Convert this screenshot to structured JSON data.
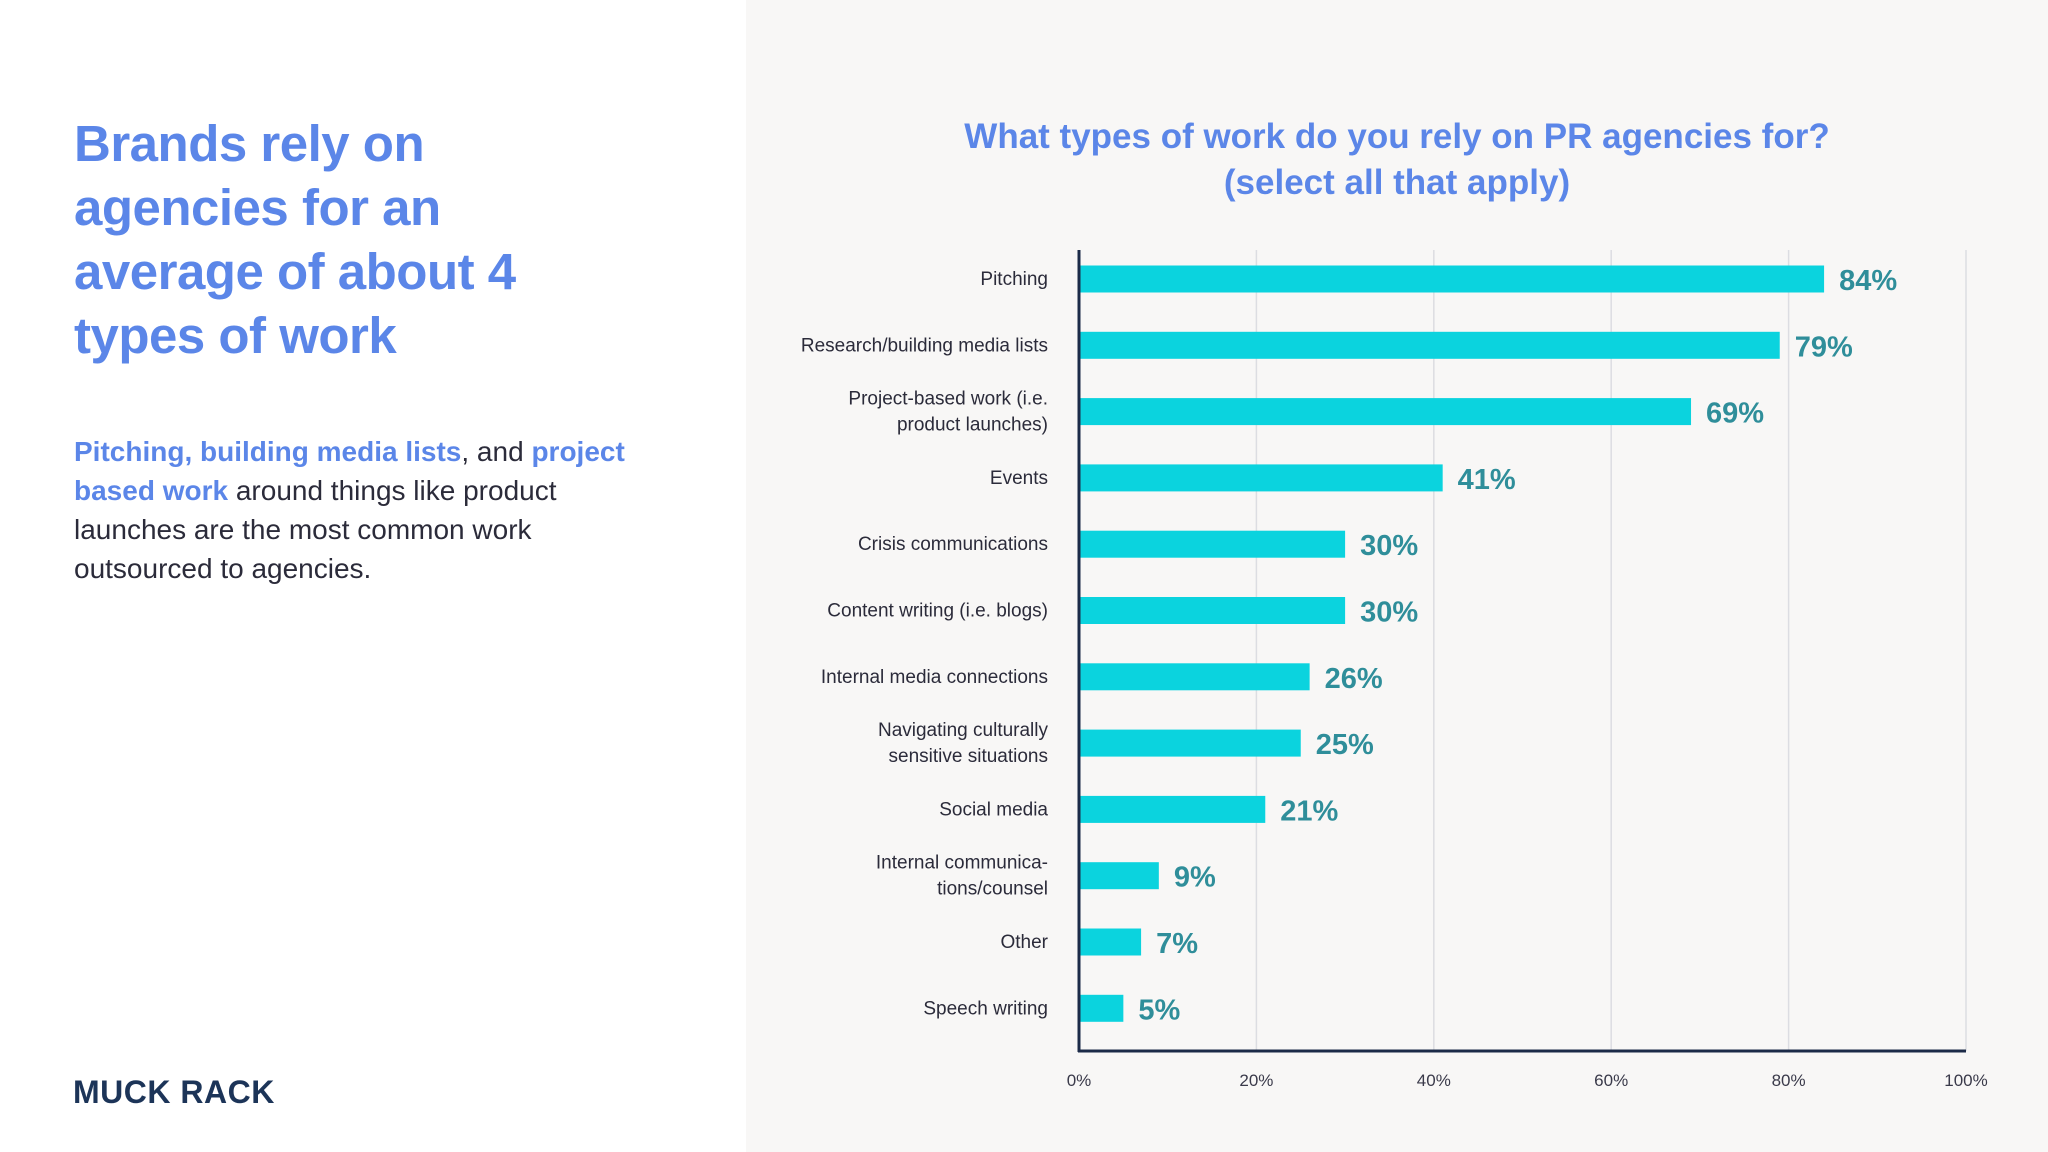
{
  "left": {
    "headline": "Brands rely on agencies for an average of about 4 types of work",
    "body": {
      "highlight_1": "Pitching, building media lists",
      "text_1": ", and",
      "highlight_2": "project based work",
      "text_2": "around things like product launches are the most common work outsourced to agencies."
    },
    "logo": "MUCK RACK"
  },
  "colors": {
    "accent_blue": "#5b86e8",
    "bar": "#0bd3de",
    "value_label": "#2f8e9a",
    "axis": "#1c2b48"
  },
  "chart_data": {
    "type": "bar",
    "orientation": "horizontal",
    "title_line_1": "What types of work do you rely on PR agencies for?",
    "title_line_2": "(select all that apply)",
    "categories": [
      [
        "Pitching"
      ],
      [
        "Research/building media lists"
      ],
      [
        "Project-based work (i.e.",
        "product launches)"
      ],
      [
        "Events"
      ],
      [
        "Crisis communications"
      ],
      [
        "Content writing (i.e. blogs)"
      ],
      [
        "Internal media connections"
      ],
      [
        "Navigating culturally",
        "sensitive situations"
      ],
      [
        "Social media"
      ],
      [
        "Internal communica-",
        "tions/counsel"
      ],
      [
        "Other"
      ],
      [
        "Speech writing"
      ]
    ],
    "values": [
      84,
      79,
      69,
      41,
      30,
      30,
      26,
      25,
      21,
      9,
      7,
      5
    ],
    "value_labels": [
      "84%",
      "79%",
      "69%",
      "41%",
      "30%",
      "30%",
      "26%",
      "25%",
      "21%",
      "9%",
      "7%",
      "5%"
    ],
    "xlim": [
      0,
      100
    ],
    "xticks": [
      0,
      20,
      40,
      60,
      80,
      100
    ],
    "xtick_labels": [
      "0%",
      "20%",
      "40%",
      "60%",
      "80%",
      "100%"
    ],
    "grid": true,
    "legend": "none"
  }
}
